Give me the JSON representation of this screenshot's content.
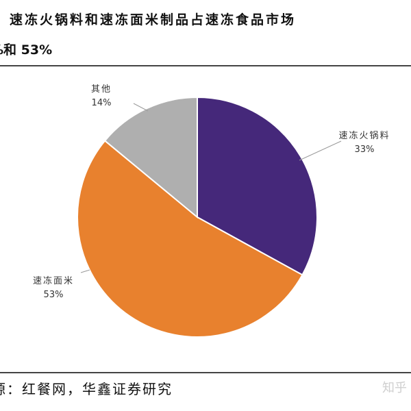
{
  "header": {
    "title_line1": "速冻火锅料和速冻面米制品占速冻食品市场",
    "title_line2": "%和 53%"
  },
  "footer": {
    "source": "源：红餐网，华鑫证券研究",
    "watermark": "知乎"
  },
  "colors": {
    "slice_hotpot": "#45287A",
    "slice_noodle": "#E8812E",
    "slice_other": "#AFAFAF",
    "label_text": "#333333",
    "leader_line": "#9a9a9a"
  },
  "chart_data": {
    "type": "pie",
    "title": "",
    "slices": [
      {
        "label": "速冻火锅料",
        "value": 33,
        "value_label": "33%"
      },
      {
        "label": "速冻面米",
        "value": 53,
        "value_label": "53%"
      },
      {
        "label": "其他",
        "value": 14,
        "value_label": "14%"
      }
    ],
    "start_angle": "12 o'clock",
    "direction": "clockwise",
    "legend": "none"
  }
}
